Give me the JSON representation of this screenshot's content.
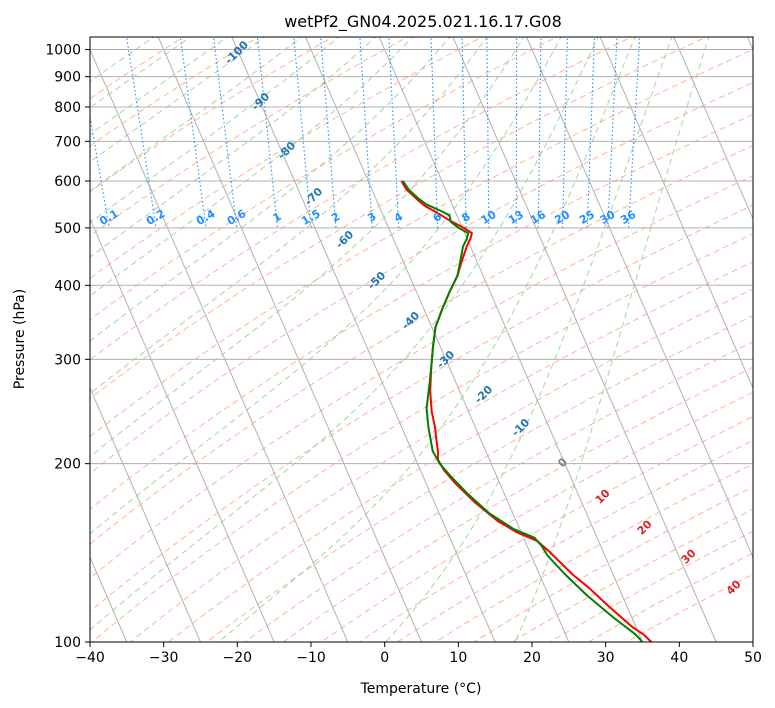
{
  "chart_data": {
    "type": "line",
    "title": "wetPf2_GN04.2025.021.16.17.G08",
    "xlabel": "Temperature (°C)",
    "ylabel": "Pressure (hPa)",
    "xlim": [
      -40,
      50
    ],
    "ylim": [
      1050,
      100
    ],
    "y_scale": "log",
    "x_ticks": [
      "−40",
      "−30",
      "−20",
      "−10",
      "0",
      "10",
      "20",
      "30",
      "40",
      "50"
    ],
    "y_ticks": [
      "100",
      "200",
      "300",
      "400",
      "500",
      "600",
      "700",
      "800",
      "900",
      "1000"
    ],
    "grid": true,
    "series": [
      {
        "color": "#ff0000",
        "points": [
          [
            -5.5,
            600
          ],
          [
            -5.3,
            580
          ],
          [
            -4.5,
            560
          ],
          [
            -3.8,
            545
          ],
          [
            -2.5,
            530
          ],
          [
            -1.3,
            515
          ],
          [
            0.2,
            500
          ],
          [
            1.0,
            490
          ],
          [
            0.5,
            480
          ],
          [
            -0.5,
            465
          ],
          [
            -2.0,
            440
          ],
          [
            -3.5,
            415
          ],
          [
            -5.5,
            390
          ],
          [
            -7.5,
            365
          ],
          [
            -9.5,
            340
          ],
          [
            -11.0,
            315
          ],
          [
            -12.5,
            290
          ],
          [
            -14.0,
            265
          ],
          [
            -15.0,
            245
          ],
          [
            -15.5,
            230
          ],
          [
            -16.0,
            220
          ],
          [
            -16.5,
            210
          ],
          [
            -17.0,
            203
          ],
          [
            -16.8,
            195
          ],
          [
            -16.0,
            185
          ],
          [
            -14.5,
            172
          ],
          [
            -12.5,
            160
          ],
          [
            -10.5,
            153
          ],
          [
            -8.3,
            148
          ],
          [
            -7.3,
            142
          ],
          [
            -5.5,
            130
          ],
          [
            -4.0,
            123
          ],
          [
            -2.5,
            115
          ],
          [
            -0.5,
            106
          ],
          [
            0.6,
            103
          ],
          [
            1.2,
            100
          ]
        ]
      },
      {
        "color": "#008000",
        "points": [
          [
            -5.3,
            600
          ],
          [
            -5.0,
            580
          ],
          [
            -4.2,
            560
          ],
          [
            -3.5,
            548
          ],
          [
            -2.0,
            535
          ],
          [
            -1.0,
            525
          ],
          [
            -1.2,
            512
          ],
          [
            -0.5,
            500
          ],
          [
            0.5,
            490
          ],
          [
            0.0,
            480
          ],
          [
            -1.0,
            465
          ],
          [
            -2.2,
            440
          ],
          [
            -3.5,
            415
          ],
          [
            -5.5,
            390
          ],
          [
            -7.5,
            365
          ],
          [
            -9.5,
            340
          ],
          [
            -11.0,
            315
          ],
          [
            -12.5,
            290
          ],
          [
            -14.0,
            268
          ],
          [
            -15.5,
            248
          ],
          [
            -16.3,
            232
          ],
          [
            -16.8,
            220
          ],
          [
            -17.2,
            210
          ],
          [
            -17.0,
            200
          ],
          [
            -16.2,
            190
          ],
          [
            -15.0,
            178
          ],
          [
            -13.2,
            165
          ],
          [
            -10.8,
            155
          ],
          [
            -8.5,
            150
          ],
          [
            -8.0,
            145
          ],
          [
            -7.8,
            140
          ],
          [
            -6.5,
            130
          ],
          [
            -4.8,
            120
          ],
          [
            -2.5,
            110
          ],
          [
            -0.5,
            103
          ],
          [
            0.0,
            100
          ]
        ]
      }
    ],
    "isotherm_labels": [
      "-100",
      "-90",
      "-80",
      "-70",
      "-60",
      "-50",
      "-40",
      "-30",
      "-20",
      "-10"
    ],
    "mixing_ratio_labels": [
      "0.1",
      "0.2",
      "0.4",
      "0.6",
      "1",
      "1.5",
      "2",
      "3",
      "4",
      "6",
      "8",
      "10",
      "13",
      "16",
      "20",
      "25",
      "30",
      "36"
    ],
    "moist_adiabat_labels": [
      "0",
      "10",
      "20",
      "30",
      "40"
    ],
    "colors": {
      "temperature_line": "#ff0000",
      "dewpoint_line": "#008000",
      "isotherm_label": "#1f77b4",
      "mixing_ratio": "#1e90ff",
      "moist_adiabat_label": "#d62728",
      "dry_adiabat": "#ffa07a",
      "moist_adiabat": "#90c890",
      "grid": "#b0b0b0"
    }
  }
}
